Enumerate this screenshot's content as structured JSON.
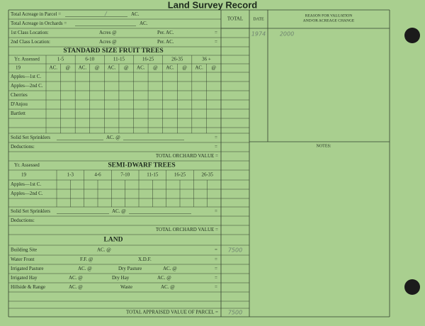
{
  "title": "Land Survey Record",
  "acreage": {
    "parcel": "Total Acreage in Parcel =",
    "parcel_entry": "/",
    "parcel_unit": "AC.",
    "orchards": "Total Acreage in Orchards =",
    "orchards_unit": "AC."
  },
  "locations": [
    {
      "label": "1st Class Location:",
      "acres": "Acres @",
      "per": "Per. AC.",
      "eq": "="
    },
    {
      "label": "2nd Class Location:",
      "acres": "Acres @",
      "per": "Per. AC.",
      "eq": "="
    }
  ],
  "columns": {
    "total": "TOTAL",
    "date": "DATE",
    "reason": [
      "REASON FOR VALUATION",
      "AND/OR ACREAGE CHANGE"
    ],
    "notes": "NOTES:"
  },
  "entries": {
    "date": "1974",
    "value": "2000"
  },
  "standard": {
    "heading": "STANDARD SIZE FRUIT TREES",
    "yr_assessed": "Yr. Assessed",
    "year_prefix": "19",
    "age_groups": [
      "1-5",
      "6-10",
      "11-15",
      "16-25",
      "26-35",
      "36 +"
    ],
    "sub_columns": [
      "AC.",
      "@"
    ],
    "varieties": [
      "Apples—1st C.",
      "Apples—2nd C.",
      "Cherries",
      "D'Anjou",
      "Bartlett"
    ],
    "sprinklers": {
      "label": "Solid Set Sprinklers",
      "unit": "AC. @",
      "eq": "="
    },
    "deductions": {
      "label": "Deductions:",
      "eq": "="
    },
    "total": "TOTAL ORCHARD VALUE ="
  },
  "semi_dwarf": {
    "heading": "SEMI-DWARF TREES",
    "yr_assessed": "Yr. Assessed",
    "year_prefix": "19",
    "age_groups": [
      "1-3",
      "4-6",
      "7-10",
      "11-15",
      "16-25",
      "26-35"
    ],
    "varieties": [
      "Apples—1st C.",
      "Apples—2nd C."
    ],
    "sprinklers": {
      "label": "Solid Set Sprinklers",
      "unit": "AC. @",
      "eq": "="
    },
    "deductions": {
      "label": "Deductions:"
    },
    "total": "TOTAL ORCHARD VALUE ="
  },
  "land": {
    "heading": "LAND",
    "rows": [
      {
        "label": "Building Site",
        "unit": "AC. @",
        "eq": "=",
        "entry": "7500"
      },
      {
        "label": "Water Front",
        "unit": "F.F. @",
        "extra": "X.D.F.",
        "eq": "="
      },
      {
        "label": "Irrigated Pasture",
        "unit": "AC. @",
        "extra": "Dry Pasture",
        "extra_unit": "AC. @",
        "eq": "="
      },
      {
        "label": "Irrigated Hay",
        "unit": "AC. @",
        "extra": "Dry Hay",
        "extra_unit": "AC. @",
        "eq": "="
      },
      {
        "label": "Hillside & Range",
        "unit": "AC. @",
        "extra": "Waste",
        "extra_unit": "AC. @",
        "eq": "="
      }
    ],
    "total": "TOTAL APPRAISED VALUE OF PARCEL =",
    "total_entry": "7500"
  }
}
